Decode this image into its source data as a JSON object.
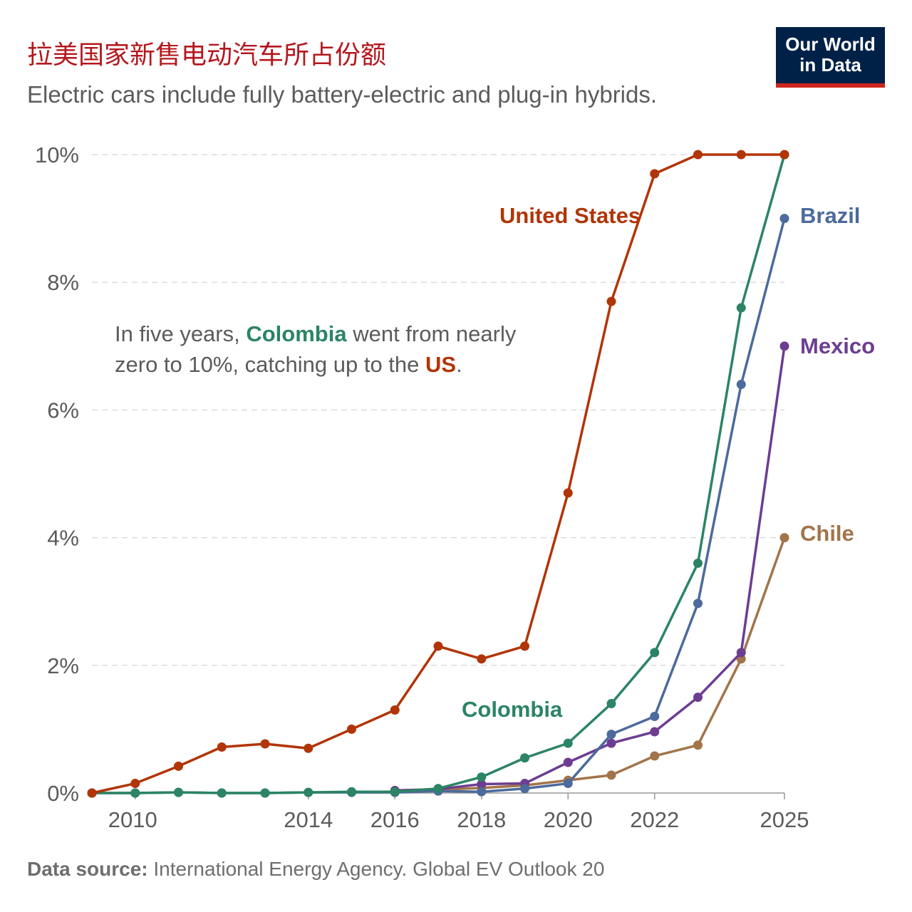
{
  "header": {
    "title": "拉美国家新售电动汽车所占份额",
    "subtitle": "Electric cars include fully battery-electric and plug-in hybrids.",
    "logo_line1": "Our World",
    "logo_line2": "in Data"
  },
  "annotation": {
    "part1": "In five years, ",
    "colombia": "Colombia",
    "part2": " went from nearly",
    "part3": "zero to 10%, catching up to the ",
    "us": "US",
    "part4": "."
  },
  "footer": {
    "source_label": "Data source:",
    "source_text": " International Energy Agency. Global EV Outlook 20"
  },
  "chart_data": {
    "type": "line",
    "xlim": [
      2009,
      2025
    ],
    "ylim": [
      0,
      10
    ],
    "x_ticks": [
      2010,
      2014,
      2016,
      2018,
      2020,
      2022,
      2025
    ],
    "y_ticks": [
      0,
      2,
      4,
      6,
      8,
      10
    ],
    "y_tick_labels": [
      "0%",
      "2%",
      "4%",
      "6%",
      "8%",
      "10%"
    ],
    "grid": true,
    "series": [
      {
        "name": "Chile",
        "color": "#a2744a",
        "x": [
          2016,
          2017,
          2018,
          2019,
          2020,
          2021,
          2022,
          2023,
          2024,
          2025
        ],
        "y": [
          0.02,
          0.05,
          0.08,
          0.12,
          0.2,
          0.28,
          0.58,
          0.75,
          2.1,
          4.0
        ]
      },
      {
        "name": "Mexico",
        "color": "#6c3d91",
        "x": [
          2016,
          2017,
          2018,
          2019,
          2020,
          2021,
          2022,
          2023,
          2024,
          2025
        ],
        "y": [
          0.04,
          0.06,
          0.14,
          0.15,
          0.48,
          0.78,
          0.96,
          1.5,
          2.2,
          7.0
        ]
      },
      {
        "name": "Brazil",
        "color": "#4c6a9c",
        "x": [
          2009,
          2010,
          2011,
          2012,
          2013,
          2014,
          2015,
          2016,
          2017,
          2018,
          2019,
          2020,
          2021,
          2022,
          2023,
          2024,
          2025
        ],
        "y": [
          0,
          0,
          0.01,
          0,
          0,
          0.01,
          0.01,
          0.01,
          0.03,
          0.02,
          0.07,
          0.15,
          0.92,
          1.2,
          2.97,
          6.4,
          9.0
        ]
      },
      {
        "name": "Colombia",
        "color": "#2c8465",
        "x": [
          2009,
          2010,
          2011,
          2012,
          2013,
          2014,
          2015,
          2016,
          2017,
          2018,
          2019,
          2020,
          2021,
          2022,
          2023,
          2024,
          2025
        ],
        "y": [
          0,
          0,
          0.01,
          0,
          0,
          0.01,
          0.02,
          0.02,
          0.07,
          0.25,
          0.55,
          0.78,
          1.4,
          2.2,
          3.6,
          7.6,
          10.0
        ]
      },
      {
        "name": "United States",
        "color": "#b13507",
        "x": [
          2009,
          2010,
          2011,
          2012,
          2013,
          2014,
          2015,
          2016,
          2017,
          2018,
          2019,
          2020,
          2021,
          2022,
          2023,
          2024,
          2025
        ],
        "y": [
          0,
          0.15,
          0.42,
          0.72,
          0.77,
          0.7,
          1.0,
          1.3,
          2.3,
          2.1,
          2.3,
          4.7,
          7.7,
          9.7,
          10.0,
          10.0,
          10.0
        ]
      }
    ]
  }
}
